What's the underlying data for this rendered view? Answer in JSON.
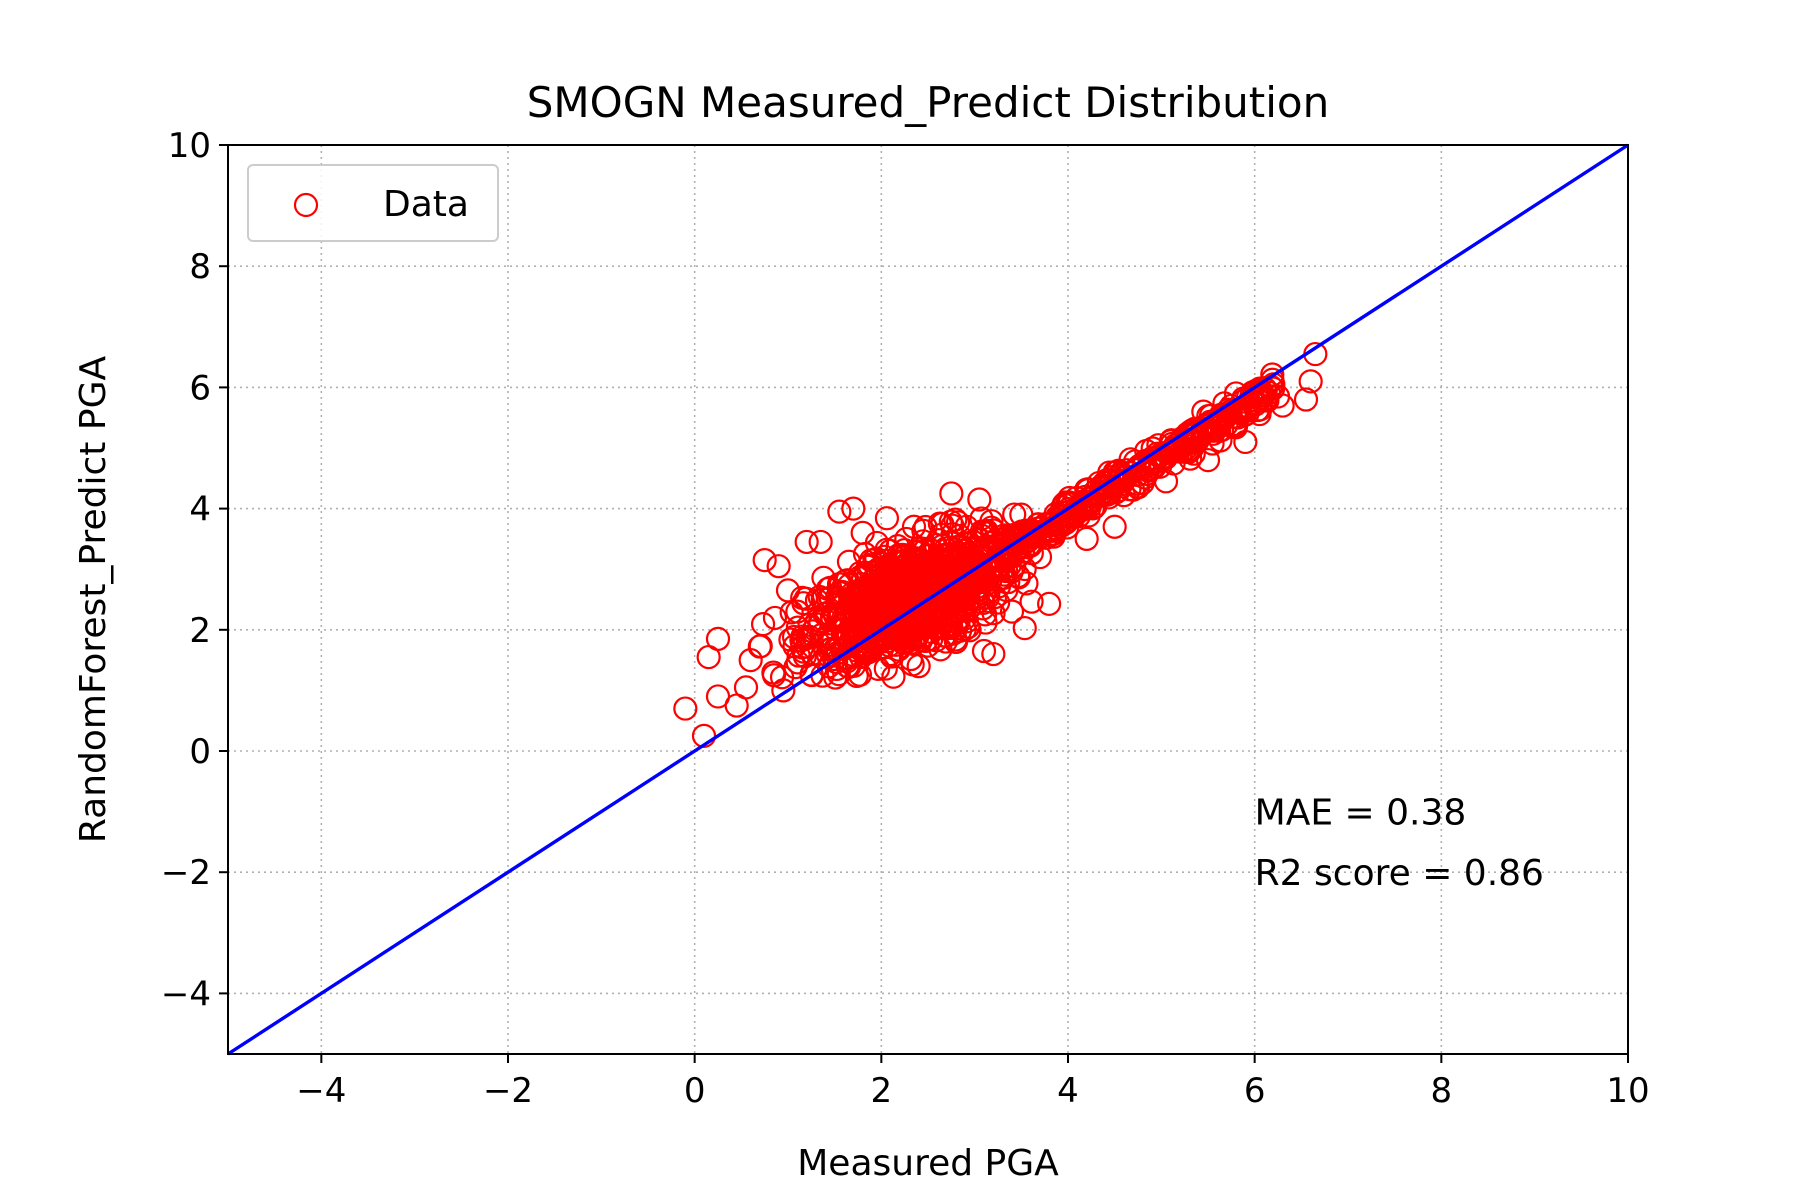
{
  "chart_data": {
    "type": "scatter",
    "title": "SMOGN Measured_Predict Distribution",
    "xlabel": "Measured PGA",
    "ylabel": "RandomForest_Predict PGA",
    "xlim": [
      -5,
      10
    ],
    "ylim": [
      -5,
      10
    ],
    "xticks": [
      -4,
      -2,
      0,
      2,
      4,
      6,
      8,
      10
    ],
    "xtick_labels": [
      "−4",
      "−2",
      "0",
      "2",
      "4",
      "6",
      "8",
      "10"
    ],
    "yticks": [
      -4,
      -2,
      0,
      2,
      4,
      6,
      8,
      10
    ],
    "ytick_labels": [
      "−4",
      "−2",
      "0",
      "2",
      "4",
      "6",
      "8",
      "10"
    ],
    "grid": true,
    "legend": {
      "placement": "top-left",
      "entries": [
        "Data"
      ]
    },
    "annotations": [
      "MAE = 0.38",
      "R2 score = 0.86"
    ],
    "series": [
      {
        "name": "Data",
        "marker": "open-circle",
        "color": "#ff0000",
        "points": [
          [
            -0.1,
            0.7
          ],
          [
            0.1,
            0.25
          ],
          [
            0.15,
            1.55
          ],
          [
            0.25,
            1.85
          ],
          [
            0.25,
            0.9
          ],
          [
            0.45,
            0.75
          ],
          [
            0.55,
            1.05
          ],
          [
            0.6,
            1.5
          ],
          [
            0.75,
            3.15
          ],
          [
            0.85,
            1.25
          ],
          [
            0.9,
            3.05
          ],
          [
            0.95,
            1.0
          ],
          [
            1.0,
            2.65
          ],
          [
            1.1,
            2.3
          ],
          [
            1.2,
            3.45
          ],
          [
            1.35,
            3.45
          ],
          [
            1.55,
            3.95
          ],
          [
            1.7,
            4.0
          ],
          [
            1.8,
            3.6
          ],
          [
            2.1,
            1.6
          ],
          [
            2.35,
            3.7
          ],
          [
            2.4,
            1.4
          ],
          [
            2.75,
            4.25
          ],
          [
            2.8,
            1.8
          ],
          [
            3.1,
            1.65
          ],
          [
            3.2,
            1.6
          ],
          [
            3.05,
            4.15
          ],
          [
            3.4,
            2.3
          ],
          [
            3.5,
            3.9
          ],
          [
            3.7,
            3.2
          ],
          [
            4.2,
            3.5
          ],
          [
            4.5,
            3.7
          ],
          [
            4.5,
            4.6
          ],
          [
            4.75,
            4.35
          ],
          [
            5.05,
            4.45
          ],
          [
            5.25,
            5.05
          ],
          [
            5.45,
            5.6
          ],
          [
            5.5,
            4.8
          ],
          [
            5.65,
            5.3
          ],
          [
            5.8,
            5.9
          ],
          [
            5.85,
            5.6
          ],
          [
            5.9,
            5.1
          ],
          [
            6.0,
            5.75
          ],
          [
            6.2,
            6.05
          ],
          [
            6.25,
            5.85
          ],
          [
            6.3,
            5.7
          ],
          [
            6.55,
            5.8
          ],
          [
            6.6,
            6.1
          ],
          [
            6.65,
            6.55
          ]
        ]
      },
      {
        "name": "",
        "type": "line",
        "color": "#0000ff",
        "points": [
          [
            -5,
            -5
          ],
          [
            10,
            10
          ]
        ]
      }
    ]
  }
}
